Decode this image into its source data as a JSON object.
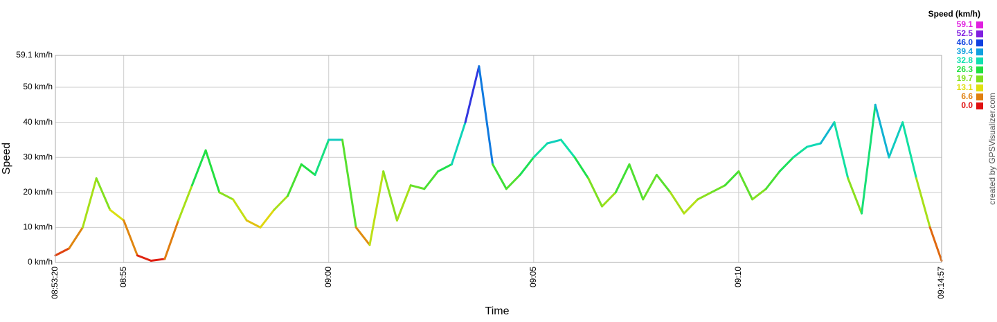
{
  "chart_data": {
    "type": "line",
    "x_label": "Time",
    "y_label": "Speed",
    "credit": "created by GPSVisualizer.com",
    "x": [
      "08:53:20",
      "08:53:40",
      "08:54:00",
      "08:54:20",
      "08:54:40",
      "08:55:00",
      "08:55:20",
      "08:55:40",
      "08:56:00",
      "08:56:20",
      "08:56:40",
      "08:57:00",
      "08:57:20",
      "08:57:40",
      "08:58:00",
      "08:58:20",
      "08:58:40",
      "08:59:00",
      "08:59:20",
      "08:59:40",
      "09:00:00",
      "09:00:20",
      "09:00:40",
      "09:01:00",
      "09:01:20",
      "09:01:40",
      "09:02:00",
      "09:02:20",
      "09:02:40",
      "09:03:00",
      "09:03:20",
      "09:03:40",
      "09:04:00",
      "09:04:20",
      "09:04:40",
      "09:05:00",
      "09:05:20",
      "09:05:40",
      "09:06:00",
      "09:06:20",
      "09:06:40",
      "09:07:00",
      "09:07:20",
      "09:07:40",
      "09:08:00",
      "09:08:20",
      "09:08:40",
      "09:09:00",
      "09:09:20",
      "09:09:40",
      "09:10:00",
      "09:10:20",
      "09:10:40",
      "09:11:00",
      "09:11:20",
      "09:11:40",
      "09:12:00",
      "09:12:20",
      "09:12:40",
      "09:13:00",
      "09:13:20",
      "09:13:40",
      "09:14:00",
      "09:14:20",
      "09:14:40",
      "09:14:57"
    ],
    "series": [
      {
        "name": "Speed",
        "values": [
          2,
          4,
          10,
          24,
          15,
          12,
          2,
          0.5,
          1,
          12,
          22,
          32,
          20,
          18,
          12,
          10,
          15,
          19,
          28,
          25,
          35,
          35,
          10,
          5,
          26,
          12,
          22,
          21,
          26,
          28,
          40,
          56,
          28,
          21,
          25,
          30,
          34,
          35,
          30,
          24,
          16,
          20,
          28,
          18,
          25,
          20,
          14,
          18,
          20,
          22,
          26,
          18,
          21,
          26,
          30,
          33,
          34,
          40,
          24,
          14,
          45,
          30,
          40,
          24,
          10,
          0.5
        ]
      }
    ],
    "xlim": [
      "08:53:20",
      "09:14:57"
    ],
    "xticks": [
      "08:53:20",
      "08:55",
      "09:00",
      "09:05",
      "09:10",
      "09:14:57"
    ],
    "ylim": [
      0,
      59.1
    ],
    "yticks": [
      {
        "value": 0,
        "label": "0 km/h"
      },
      {
        "value": 10,
        "label": "10 km/h"
      },
      {
        "value": 20,
        "label": "20 km/h"
      },
      {
        "value": 30,
        "label": "30 km/h"
      },
      {
        "value": 40,
        "label": "40 km/h"
      },
      {
        "value": 50,
        "label": "50 km/h"
      },
      {
        "value": 59.1,
        "label": "59.1 km/h"
      }
    ],
    "grid": true,
    "color_scale": {
      "title": "Speed (km/h)",
      "stops": [
        59.1,
        52.5,
        {
          "value": 46,
          "label": "46.0"
        },
        39.4,
        32.8,
        26.3,
        19.7,
        13.1,
        6.6,
        {
          "value": 0,
          "label": "0.0"
        }
      ],
      "colors": [
        "#e020e0",
        "#8020e0",
        "#1040e0",
        "#10a0e0",
        "#10e0b0",
        "#20e040",
        "#80e020",
        "#e0e010",
        "#e08010",
        "#e01010"
      ]
    }
  }
}
